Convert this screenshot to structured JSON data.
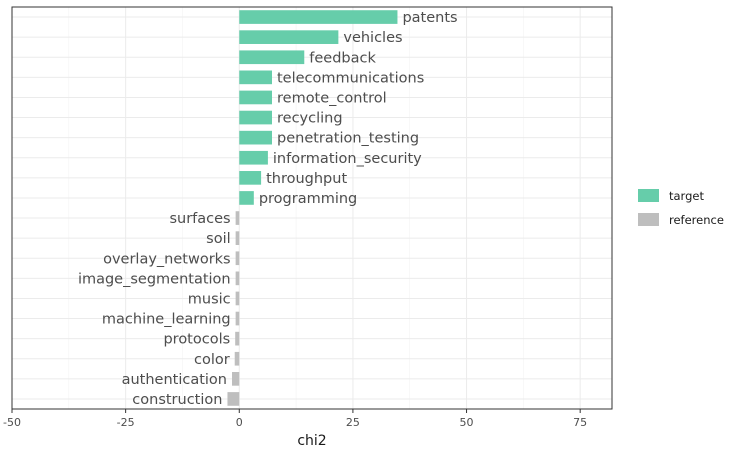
{
  "chart_data": {
    "type": "bar",
    "orientation": "horizontal",
    "title": "",
    "xlabel": "chi2",
    "ylabel": "",
    "xlim": [
      -50,
      82
    ],
    "x_ticks": [
      -50,
      -25,
      0,
      25,
      50,
      75
    ],
    "x_tick_labels": [
      "-50",
      "-25",
      "0",
      "25",
      "50",
      "75"
    ],
    "grid": true,
    "legend_position": "right",
    "categories": [
      "patents",
      "vehicles",
      "feedback",
      "telecommunications",
      "remote_control",
      "recycling",
      "penetration_testing",
      "information_security",
      "throughput",
      "programming",
      "surfaces",
      "soil",
      "overlay_networks",
      "image_segmentation",
      "music",
      "machine_learning",
      "protocols",
      "color",
      "authentication",
      "construction"
    ],
    "values": [
      34.8,
      21.8,
      14.3,
      7.2,
      7.2,
      7.2,
      7.2,
      6.3,
      4.8,
      3.2,
      -0.8,
      -0.8,
      -0.8,
      -0.8,
      -0.8,
      -0.8,
      -0.9,
      -1.0,
      -1.6,
      -2.6
    ],
    "groups": [
      "target",
      "target",
      "target",
      "target",
      "target",
      "target",
      "target",
      "target",
      "target",
      "target",
      "reference",
      "reference",
      "reference",
      "reference",
      "reference",
      "reference",
      "reference",
      "reference",
      "reference",
      "reference"
    ],
    "series": [
      {
        "name": "target",
        "color": "#66CDAA"
      },
      {
        "name": "reference",
        "color": "#BEBEBE"
      }
    ]
  }
}
